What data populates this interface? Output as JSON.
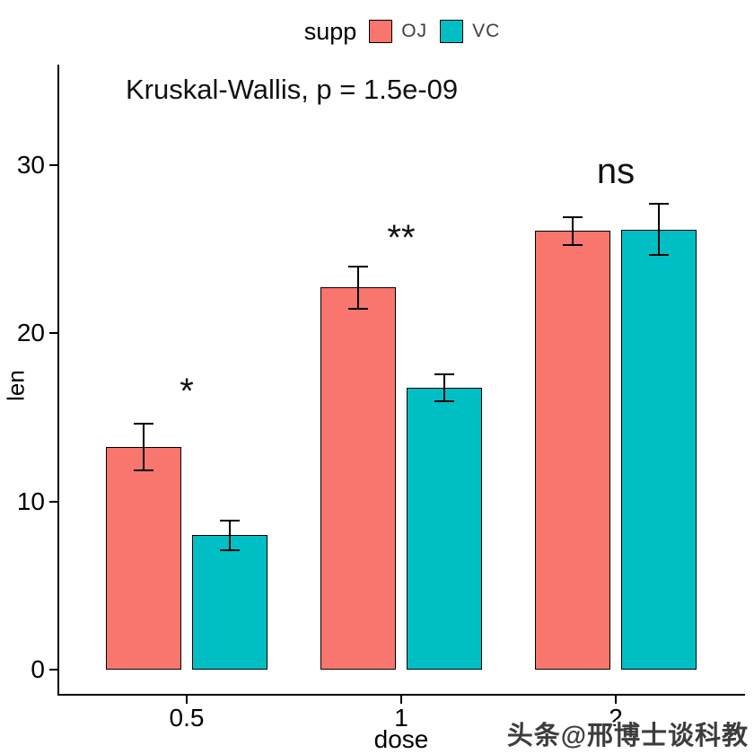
{
  "legend": {
    "title": "supp",
    "items": [
      {
        "label": "OJ",
        "color": "#F8766D"
      },
      {
        "label": "VC",
        "color": "#00BFC4"
      }
    ]
  },
  "watermark": "头条@邢博士谈科教",
  "chart_data": {
    "type": "bar",
    "title": "",
    "stat_label": "Kruskal-Wallis, p = 1.5e-09",
    "xlabel": "dose",
    "ylabel": "len",
    "categories": [
      "0.5",
      "1",
      "2"
    ],
    "series": [
      {
        "name": "OJ",
        "color": "#F8766D",
        "values": [
          13.23,
          22.7,
          26.06
        ],
        "errors": [
          1.41,
          1.24,
          0.84
        ]
      },
      {
        "name": "VC",
        "color": "#00BFC4",
        "values": [
          7.98,
          16.77,
          26.14
        ],
        "errors": [
          0.87,
          0.8,
          1.52
        ]
      }
    ],
    "significance": [
      {
        "label": "*",
        "y": 17.0
      },
      {
        "label": "**",
        "y": 26.1
      },
      {
        "label": "ns",
        "y": 29.6
      }
    ],
    "yticks": [
      0,
      10,
      20,
      30
    ],
    "ylim": [
      -1.5,
      35.9
    ],
    "grid": false,
    "legend_position": "top",
    "error_bar": "mean_se"
  }
}
